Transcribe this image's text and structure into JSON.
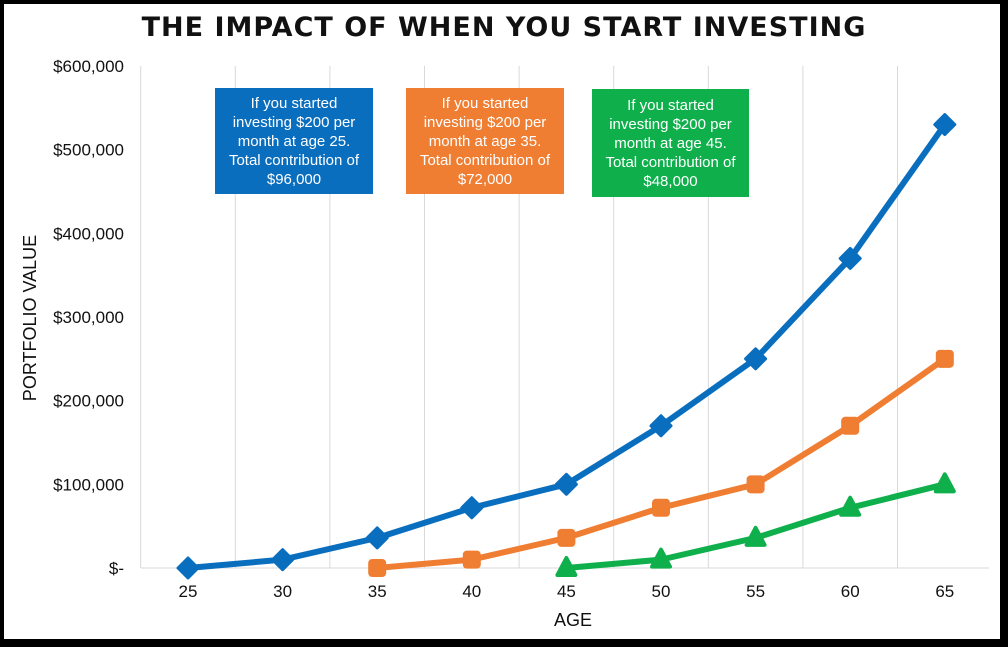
{
  "chart_data": {
    "type": "line",
    "title": "THE IMPACT OF WHEN YOU START INVESTING",
    "xlabel": "AGE",
    "ylabel": "PORTFOLIO VALUE",
    "x": [
      25,
      30,
      35,
      40,
      45,
      50,
      55,
      60,
      65
    ],
    "x_ticks": [
      "25",
      "30",
      "35",
      "40",
      "45",
      "50",
      "55",
      "60",
      "65"
    ],
    "ylim": [
      0,
      600000
    ],
    "y_ticks": [
      {
        "value": 0,
        "label": "$-"
      },
      {
        "value": 100000,
        "label": "$100,000"
      },
      {
        "value": 200000,
        "label": "$200,000"
      },
      {
        "value": 300000,
        "label": "$300,000"
      },
      {
        "value": 400000,
        "label": "$400,000"
      },
      {
        "value": 500000,
        "label": "$500,000"
      },
      {
        "value": 600000,
        "label": "$600,000"
      }
    ],
    "grid": "vertical",
    "series": [
      {
        "color": "#0a6ebf",
        "marker": "diamond",
        "x": [
          25,
          30,
          35,
          40,
          45,
          50,
          55,
          60,
          65
        ],
        "values": [
          0,
          10000,
          36000,
          72000,
          100000,
          170000,
          250000,
          370000,
          530000
        ]
      },
      {
        "color": "#ef7d32",
        "marker": "square",
        "x": [
          35,
          40,
          45,
          50,
          55,
          60,
          65
        ],
        "values": [
          0,
          10000,
          36000,
          72000,
          100000,
          170000,
          250000
        ]
      },
      {
        "color": "#0fb04c",
        "marker": "triangle",
        "x": [
          45,
          50,
          55,
          60,
          65
        ],
        "values": [
          0,
          10000,
          36000,
          72000,
          100000
        ]
      }
    ],
    "annotations": [
      {
        "text_lines": [
          "If you started",
          "investing $200 per",
          "month at age 25.",
          "Total contribution of",
          "$96,000"
        ],
        "color": "#0a6ebf"
      },
      {
        "text_lines": [
          "If you started",
          "investing $200 per",
          "month at age 35.",
          "Total contribution of",
          "$72,000"
        ],
        "color": "#ef7d32"
      },
      {
        "text_lines": [
          "If you started",
          "investing $200 per",
          "month at age 45.",
          "Total contribution of",
          "$48,000"
        ],
        "color": "#0fb04c"
      }
    ]
  }
}
